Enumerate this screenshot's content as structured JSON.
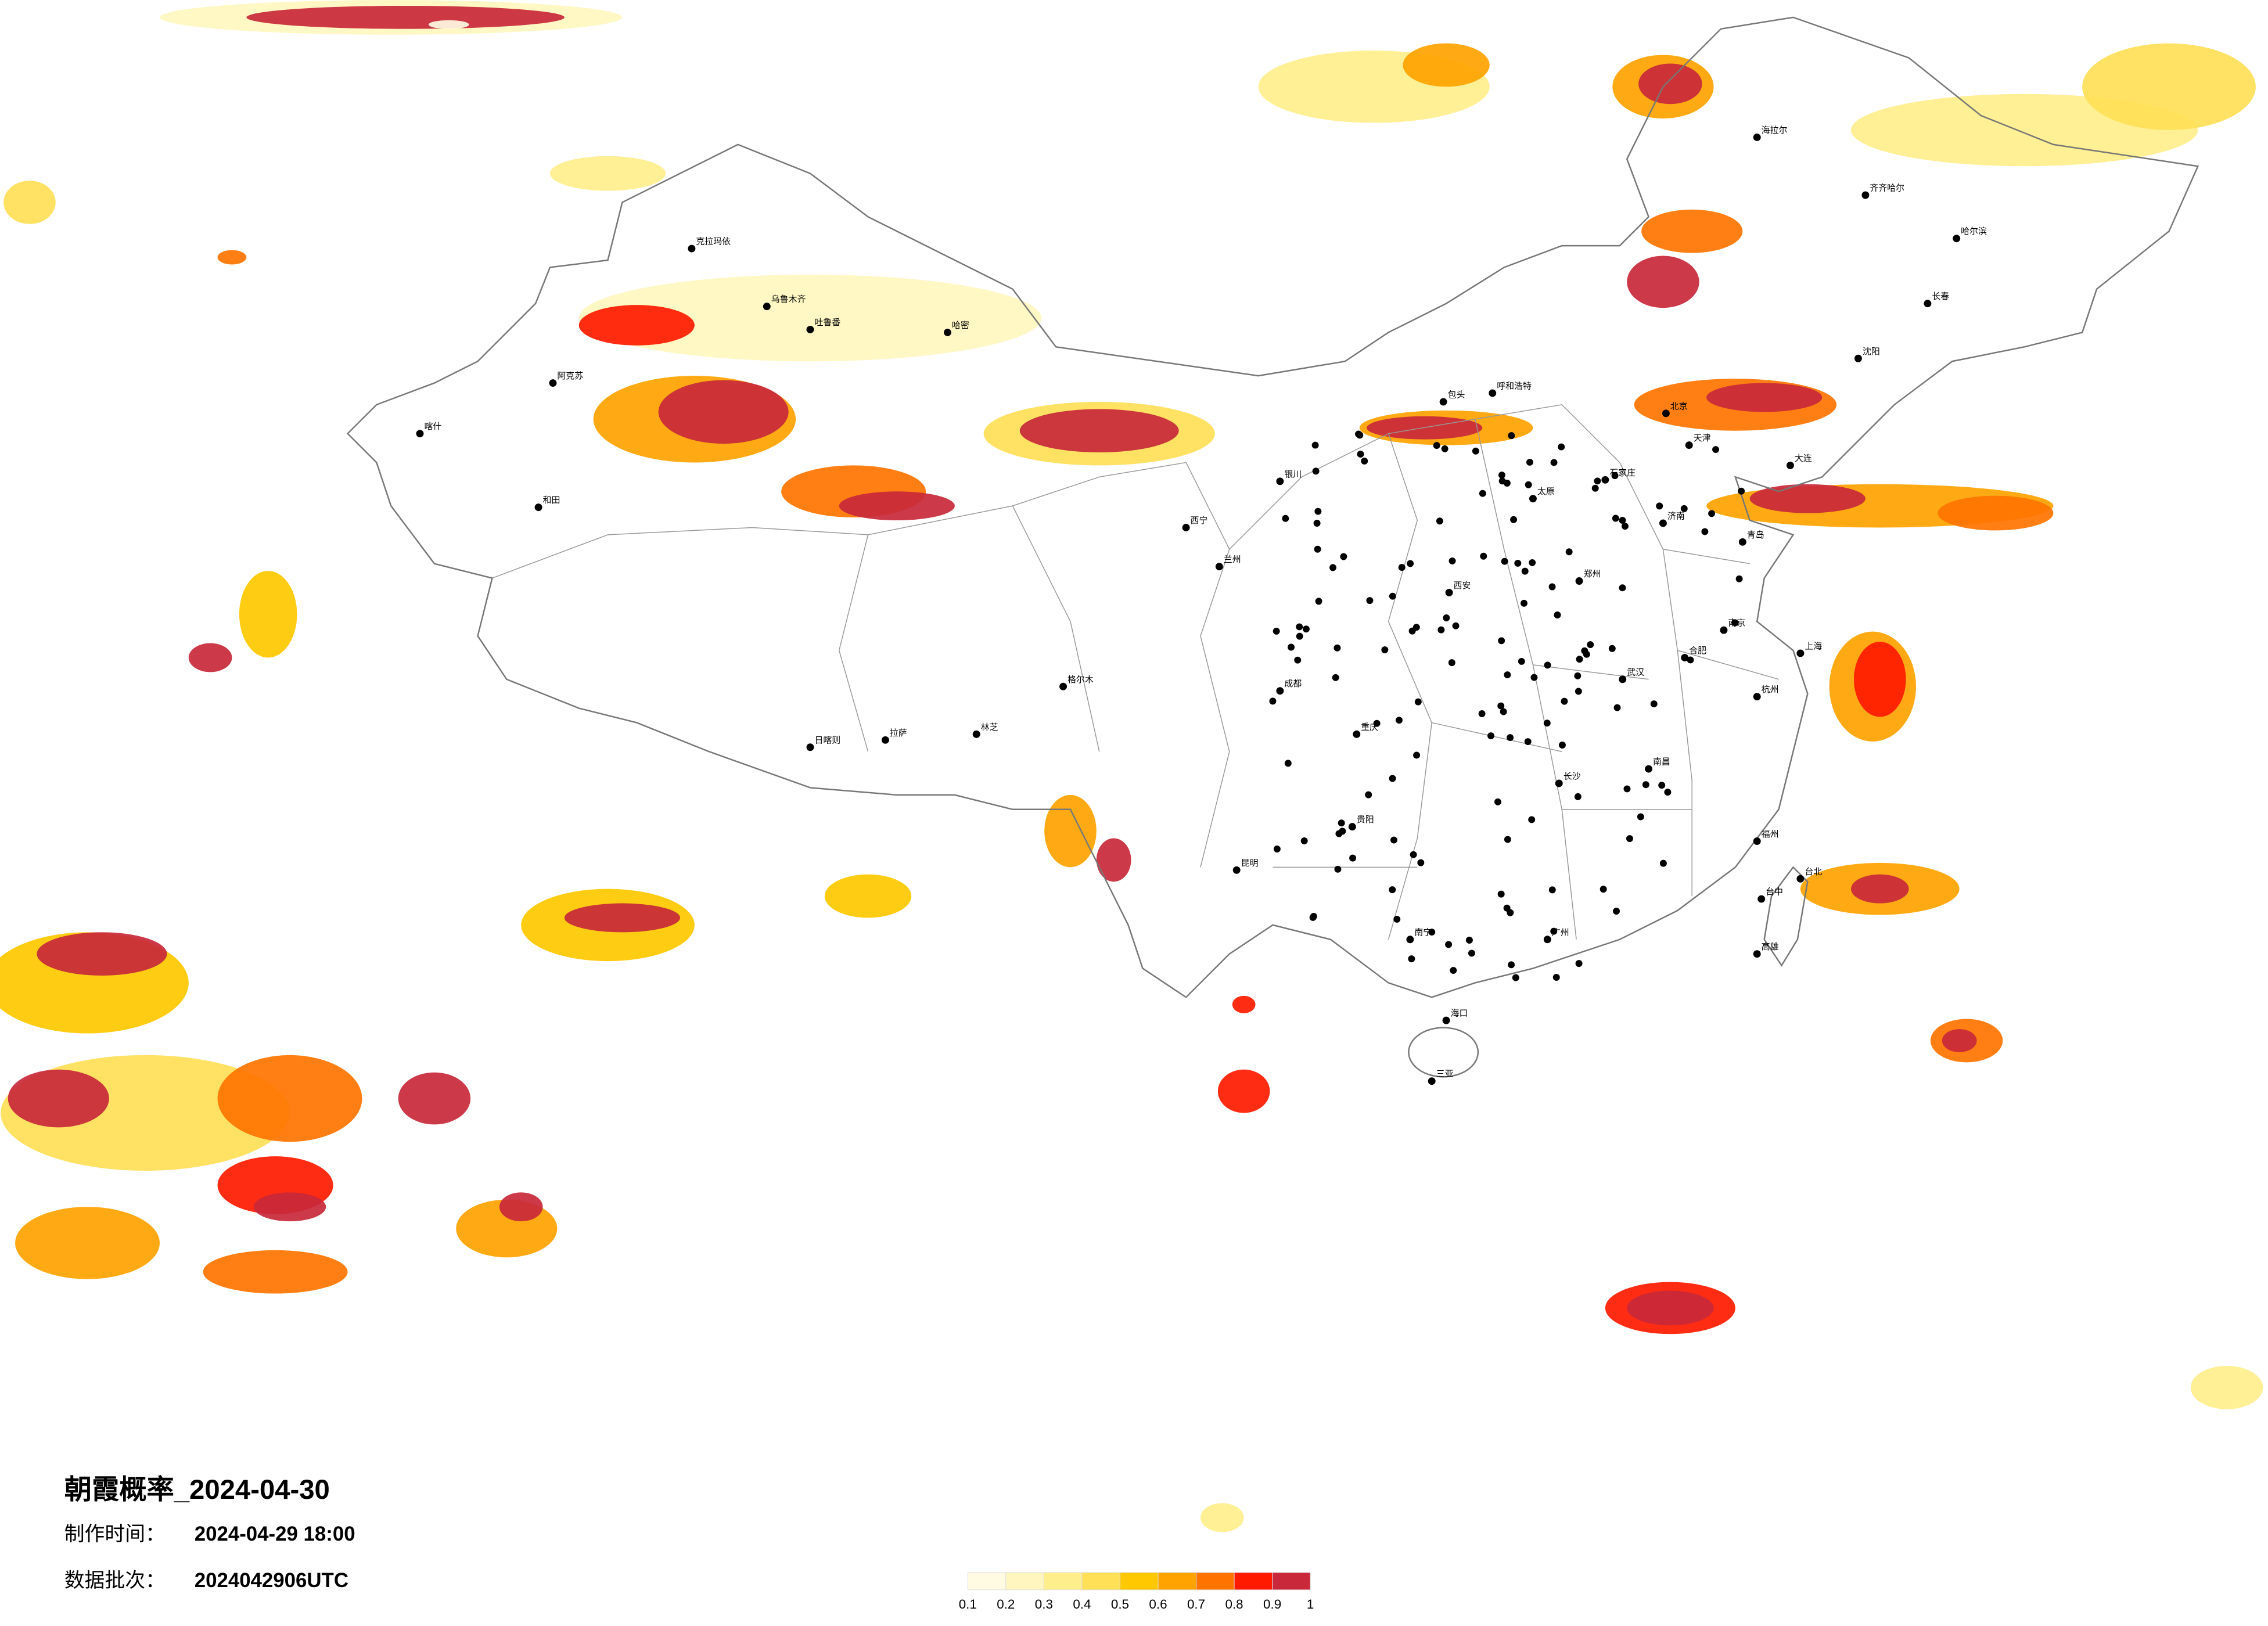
{
  "title": "朝霞概率_2024-04-30",
  "info": [
    {
      "label": "制作时间：",
      "value": "2024-04-29 18:00"
    },
    {
      "label": "数据批次：",
      "value": "2024042906UTC"
    }
  ],
  "legend": {
    "ticks": [
      0.1,
      0.2,
      0.3,
      0.4,
      0.5,
      0.6,
      0.7,
      0.8,
      0.9,
      1
    ],
    "colors": [
      "#fffbe3",
      "#fff6bf",
      "#ffee8c",
      "#ffe057",
      "#ffc800",
      "#ffa300",
      "#ff7400",
      "#ff1a00",
      "#c8283a"
    ]
  },
  "cities": [
    "克拉玛依",
    "乌鲁木齐",
    "吐鲁番",
    "哈密",
    "阿克苏",
    "喀什",
    "和田",
    "格尔木",
    "拉萨",
    "日喀则",
    "林芝",
    "西宁",
    "兰州",
    "银川",
    "呼和浩特",
    "包头",
    "北京",
    "天津",
    "石家庄",
    "太原",
    "济南",
    "郑州",
    "西安",
    "成都",
    "重庆",
    "贵阳",
    "昆明",
    "南宁",
    "广州",
    "长沙",
    "武汉",
    "南京",
    "上海",
    "杭州",
    "福州",
    "南昌",
    "合肥",
    "沈阳",
    "长春",
    "哈尔滨",
    "海拉尔",
    "齐齐哈尔",
    "大连",
    "青岛",
    "海口",
    "三亚",
    "台北",
    "台中",
    "高雄"
  ]
}
